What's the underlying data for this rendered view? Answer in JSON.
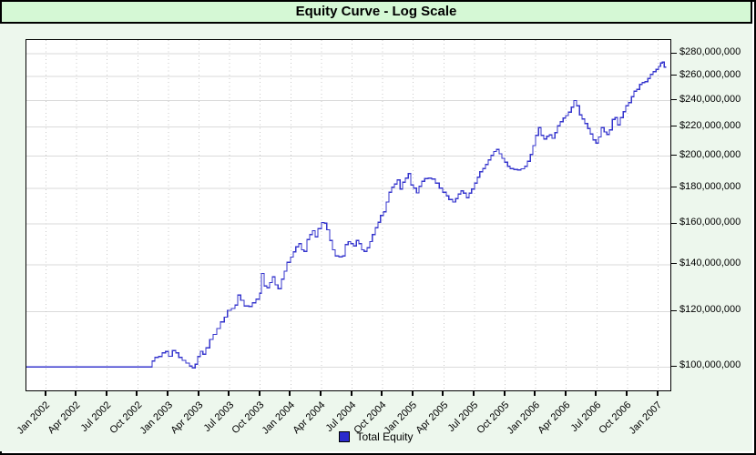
{
  "title": "Equity Curve - Log Scale",
  "legend": {
    "label": "Total Equity",
    "swatch_color": "#2b2bcc"
  },
  "colors": {
    "line": "#3535cd",
    "title_bg": "#d5f8d5",
    "panel_bg": "#edf7ed",
    "plot_bg": "#ffffff",
    "grid_h": "#dadada",
    "grid_v": "#c8c8c8",
    "border": "#000000",
    "text": "#000000"
  },
  "chart_data": {
    "type": "line",
    "title": "Equity Curve - Log Scale",
    "xlabel": "",
    "ylabel": "",
    "y_scale": "log",
    "x_unit": "decimal_year",
    "y_unit": "millions_usd",
    "x_range": [
      2001.84,
      2007.1
    ],
    "ylim_millions": [
      92.6,
      293
    ],
    "grid": "horizontal solid, vertical dotted at quarter ticks",
    "legend_position": "bottom-center",
    "y_tick_values_m": [
      100,
      120,
      140,
      160,
      180,
      200,
      220,
      240,
      260,
      280
    ],
    "y_ticks": [
      "$100,000,000",
      "$120,000,000",
      "$140,000,000",
      "$160,000,000",
      "$180,000,000",
      "$200,000,000",
      "$220,000,000",
      "$240,000,000",
      "$260,000,000",
      "$280,000,000"
    ],
    "x_ticks": [
      "Jan 2002",
      "Apr 2002",
      "Jul 2002",
      "Oct 2002",
      "Jan 2003",
      "Apr 2003",
      "Jul 2003",
      "Oct 2003",
      "Jan 2004",
      "Apr 2004",
      "Jul 2004",
      "Oct 2004",
      "Jan 2005",
      "Apr 2005",
      "Jul 2005",
      "Oct 2005",
      "Jan 2006",
      "Apr 2006",
      "Jul 2006",
      "Oct 2006",
      "Jan 2007"
    ],
    "series": [
      {
        "name": "Total Equity",
        "interpolation": "step-after",
        "points": [
          [
            2001.84,
            100
          ],
          [
            2002.837,
            100
          ],
          [
            2002.867,
            102
          ],
          [
            2002.889,
            103.2
          ],
          [
            2002.919,
            103.5
          ],
          [
            2002.949,
            104.8
          ],
          [
            2002.978,
            105.2
          ],
          [
            2003.001,
            103.6
          ],
          [
            2003.031,
            105.6
          ],
          [
            2003.06,
            104.8
          ],
          [
            2003.083,
            103.2
          ],
          [
            2003.112,
            102.2
          ],
          [
            2003.142,
            101.3
          ],
          [
            2003.172,
            100.3
          ],
          [
            2003.194,
            99.7
          ],
          [
            2003.217,
            100.9
          ],
          [
            2003.239,
            103.5
          ],
          [
            2003.261,
            105.3
          ],
          [
            2003.283,
            104.3
          ],
          [
            2003.306,
            106.5
          ],
          [
            2003.336,
            109.5
          ],
          [
            2003.365,
            111.3
          ],
          [
            2003.395,
            113.5
          ],
          [
            2003.425,
            116
          ],
          [
            2003.455,
            117.8
          ],
          [
            2003.484,
            120.5
          ],
          [
            2003.514,
            121.2
          ],
          [
            2003.544,
            122.5
          ],
          [
            2003.566,
            126.7
          ],
          [
            2003.589,
            124.5
          ],
          [
            2003.618,
            122.2
          ],
          [
            2003.656,
            122
          ],
          [
            2003.685,
            123.5
          ],
          [
            2003.715,
            125
          ],
          [
            2003.745,
            127.5
          ],
          [
            2003.76,
            136
          ],
          [
            2003.782,
            130.5
          ],
          [
            2003.804,
            129.7
          ],
          [
            2003.827,
            132
          ],
          [
            2003.849,
            134.5
          ],
          [
            2003.871,
            131
          ],
          [
            2003.894,
            129.3
          ],
          [
            2003.923,
            133.5
          ],
          [
            2003.946,
            137
          ],
          [
            2003.968,
            141
          ],
          [
            2003.998,
            143.5
          ],
          [
            2004.02,
            146
          ],
          [
            2004.042,
            148.5
          ],
          [
            2004.065,
            150
          ],
          [
            2004.087,
            147
          ],
          [
            2004.109,
            146.2
          ],
          [
            2004.132,
            152
          ],
          [
            2004.154,
            154.5
          ],
          [
            2004.176,
            156.5
          ],
          [
            2004.199,
            153.3
          ],
          [
            2004.221,
            157.5
          ],
          [
            2004.251,
            160.8
          ],
          [
            2004.273,
            160.5
          ],
          [
            2004.295,
            157
          ],
          [
            2004.318,
            151.5
          ],
          [
            2004.34,
            147
          ],
          [
            2004.362,
            144
          ],
          [
            2004.392,
            143.6
          ],
          [
            2004.422,
            144
          ],
          [
            2004.444,
            149.5
          ],
          [
            2004.467,
            151
          ],
          [
            2004.489,
            150
          ],
          [
            2004.511,
            148.8
          ],
          [
            2004.534,
            151.5
          ],
          [
            2004.556,
            150
          ],
          [
            2004.578,
            147
          ],
          [
            2004.6,
            146.2
          ],
          [
            2004.623,
            148
          ],
          [
            2004.645,
            151
          ],
          [
            2004.667,
            154.5
          ],
          [
            2004.69,
            158
          ],
          [
            2004.712,
            161
          ],
          [
            2004.734,
            164.5
          ],
          [
            2004.757,
            166.5
          ],
          [
            2004.779,
            172
          ],
          [
            2004.801,
            177.5
          ],
          [
            2004.824,
            180.5
          ],
          [
            2004.846,
            182.5
          ],
          [
            2004.868,
            185
          ],
          [
            2004.891,
            179.5
          ],
          [
            2004.913,
            183.5
          ],
          [
            2004.935,
            186
          ],
          [
            2004.958,
            188.9
          ],
          [
            2004.98,
            182
          ],
          [
            2005.002,
            180
          ],
          [
            2005.025,
            177.2
          ],
          [
            2005.047,
            181
          ],
          [
            2005.069,
            184
          ],
          [
            2005.092,
            185.8
          ],
          [
            2005.121,
            186
          ],
          [
            2005.151,
            185.5
          ],
          [
            2005.181,
            183
          ],
          [
            2005.211,
            180
          ],
          [
            2005.24,
            177.5
          ],
          [
            2005.27,
            175.5
          ],
          [
            2005.292,
            173.5
          ],
          [
            2005.322,
            172
          ],
          [
            2005.345,
            174
          ],
          [
            2005.367,
            176.5
          ],
          [
            2005.389,
            178.5
          ],
          [
            2005.411,
            177
          ],
          [
            2005.434,
            174.5
          ],
          [
            2005.456,
            177
          ],
          [
            2005.478,
            179.5
          ],
          [
            2005.501,
            183
          ],
          [
            2005.523,
            186.5
          ],
          [
            2005.545,
            190
          ],
          [
            2005.568,
            192
          ],
          [
            2005.59,
            194.5
          ],
          [
            2005.612,
            197.5
          ],
          [
            2005.635,
            200.5
          ],
          [
            2005.657,
            203
          ],
          [
            2005.679,
            204.5
          ],
          [
            2005.702,
            201.5
          ],
          [
            2005.724,
            198.5
          ],
          [
            2005.746,
            196
          ],
          [
            2005.769,
            193.5
          ],
          [
            2005.791,
            192
          ],
          [
            2005.821,
            191.3
          ],
          [
            2005.851,
            191
          ],
          [
            2005.88,
            191.8
          ],
          [
            2005.91,
            193.5
          ],
          [
            2005.932,
            196.5
          ],
          [
            2005.955,
            201
          ],
          [
            2005.977,
            207
          ],
          [
            2005.999,
            214
          ],
          [
            2006.022,
            219.6
          ],
          [
            2006.044,
            214
          ],
          [
            2006.066,
            211.5
          ],
          [
            2006.089,
            213.5
          ],
          [
            2006.111,
            214.5
          ],
          [
            2006.133,
            212
          ],
          [
            2006.156,
            216
          ],
          [
            2006.178,
            221
          ],
          [
            2006.2,
            224
          ],
          [
            2006.223,
            226.5
          ],
          [
            2006.245,
            228.5
          ],
          [
            2006.267,
            231
          ],
          [
            2006.29,
            235
          ],
          [
            2006.312,
            240
          ],
          [
            2006.334,
            236
          ],
          [
            2006.357,
            229
          ],
          [
            2006.379,
            226
          ],
          [
            2006.401,
            222.5
          ],
          [
            2006.424,
            219
          ],
          [
            2006.446,
            215
          ],
          [
            2006.468,
            211
          ],
          [
            2006.491,
            208.6
          ],
          [
            2006.513,
            213
          ],
          [
            2006.535,
            219.5
          ],
          [
            2006.558,
            216.5
          ],
          [
            2006.58,
            214.8
          ],
          [
            2006.602,
            218
          ],
          [
            2006.625,
            225.5
          ],
          [
            2006.647,
            227
          ],
          [
            2006.669,
            221.5
          ],
          [
            2006.691,
            227
          ],
          [
            2006.714,
            231.5
          ],
          [
            2006.736,
            236
          ],
          [
            2006.758,
            238.5
          ],
          [
            2006.781,
            243
          ],
          [
            2006.803,
            247.5
          ],
          [
            2006.825,
            249
          ],
          [
            2006.848,
            253
          ],
          [
            2006.87,
            254.5
          ],
          [
            2006.892,
            255.5
          ],
          [
            2006.915,
            258
          ],
          [
            2006.937,
            261.5
          ],
          [
            2006.959,
            264
          ],
          [
            2006.982,
            266
          ],
          [
            2007.004,
            268.5
          ],
          [
            2007.019,
            271.5
          ],
          [
            2007.034,
            272.5
          ],
          [
            2007.049,
            268
          ],
          [
            2007.063,
            267.5
          ]
        ]
      }
    ]
  }
}
